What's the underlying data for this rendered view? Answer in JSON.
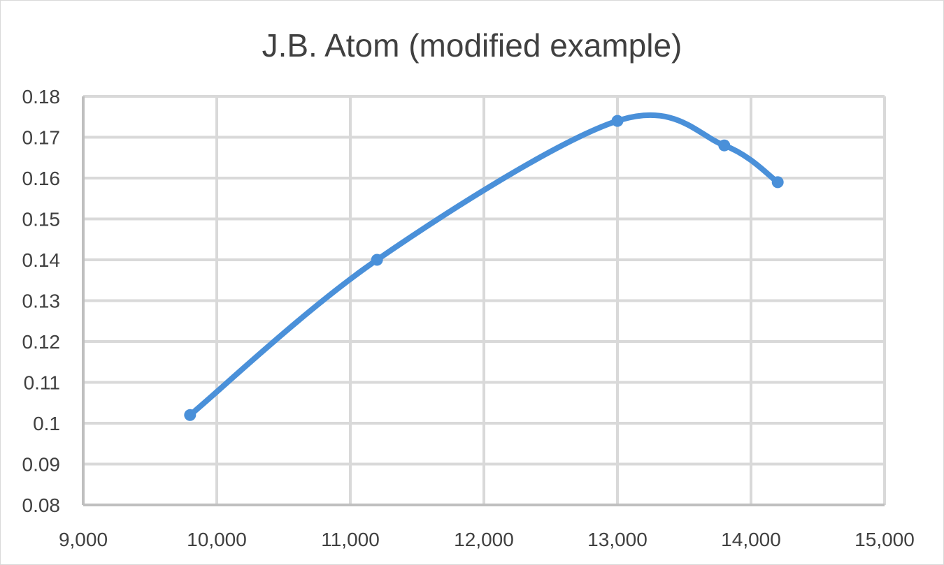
{
  "chart_data": {
    "type": "scatter",
    "title": "J.B. Atom (modified example)",
    "xlabel": "",
    "ylabel": "",
    "xlim": [
      9000,
      15000
    ],
    "ylim": [
      0.08,
      0.18
    ],
    "grid": true,
    "smooth": true,
    "markers": true,
    "x_ticks": [
      {
        "value": 9000,
        "label": "9,000"
      },
      {
        "value": 10000,
        "label": "10,000"
      },
      {
        "value": 11000,
        "label": "11,000"
      },
      {
        "value": 12000,
        "label": "12,000"
      },
      {
        "value": 13000,
        "label": "13,000"
      },
      {
        "value": 14000,
        "label": "14,000"
      },
      {
        "value": 15000,
        "label": "15,000"
      }
    ],
    "y_ticks": [
      {
        "value": 0.08,
        "label": "0.08"
      },
      {
        "value": 0.09,
        "label": "0.09"
      },
      {
        "value": 0.1,
        "label": "0.1"
      },
      {
        "value": 0.11,
        "label": "0.11"
      },
      {
        "value": 0.12,
        "label": "0.12"
      },
      {
        "value": 0.13,
        "label": "0.13"
      },
      {
        "value": 0.14,
        "label": "0.14"
      },
      {
        "value": 0.15,
        "label": "0.15"
      },
      {
        "value": 0.16,
        "label": "0.16"
      },
      {
        "value": 0.17,
        "label": "0.17"
      },
      {
        "value": 0.18,
        "label": "0.18"
      }
    ],
    "series": [
      {
        "x": [
          9800,
          11200,
          13000,
          13800,
          14200
        ],
        "y": [
          0.102,
          0.14,
          0.174,
          0.168,
          0.159
        ],
        "color": "#4a90d9"
      }
    ]
  },
  "colors": {
    "grid": "#d9d9d9",
    "axis": "#bfbfbf",
    "text": "#404040",
    "series": "#4a90d9"
  }
}
